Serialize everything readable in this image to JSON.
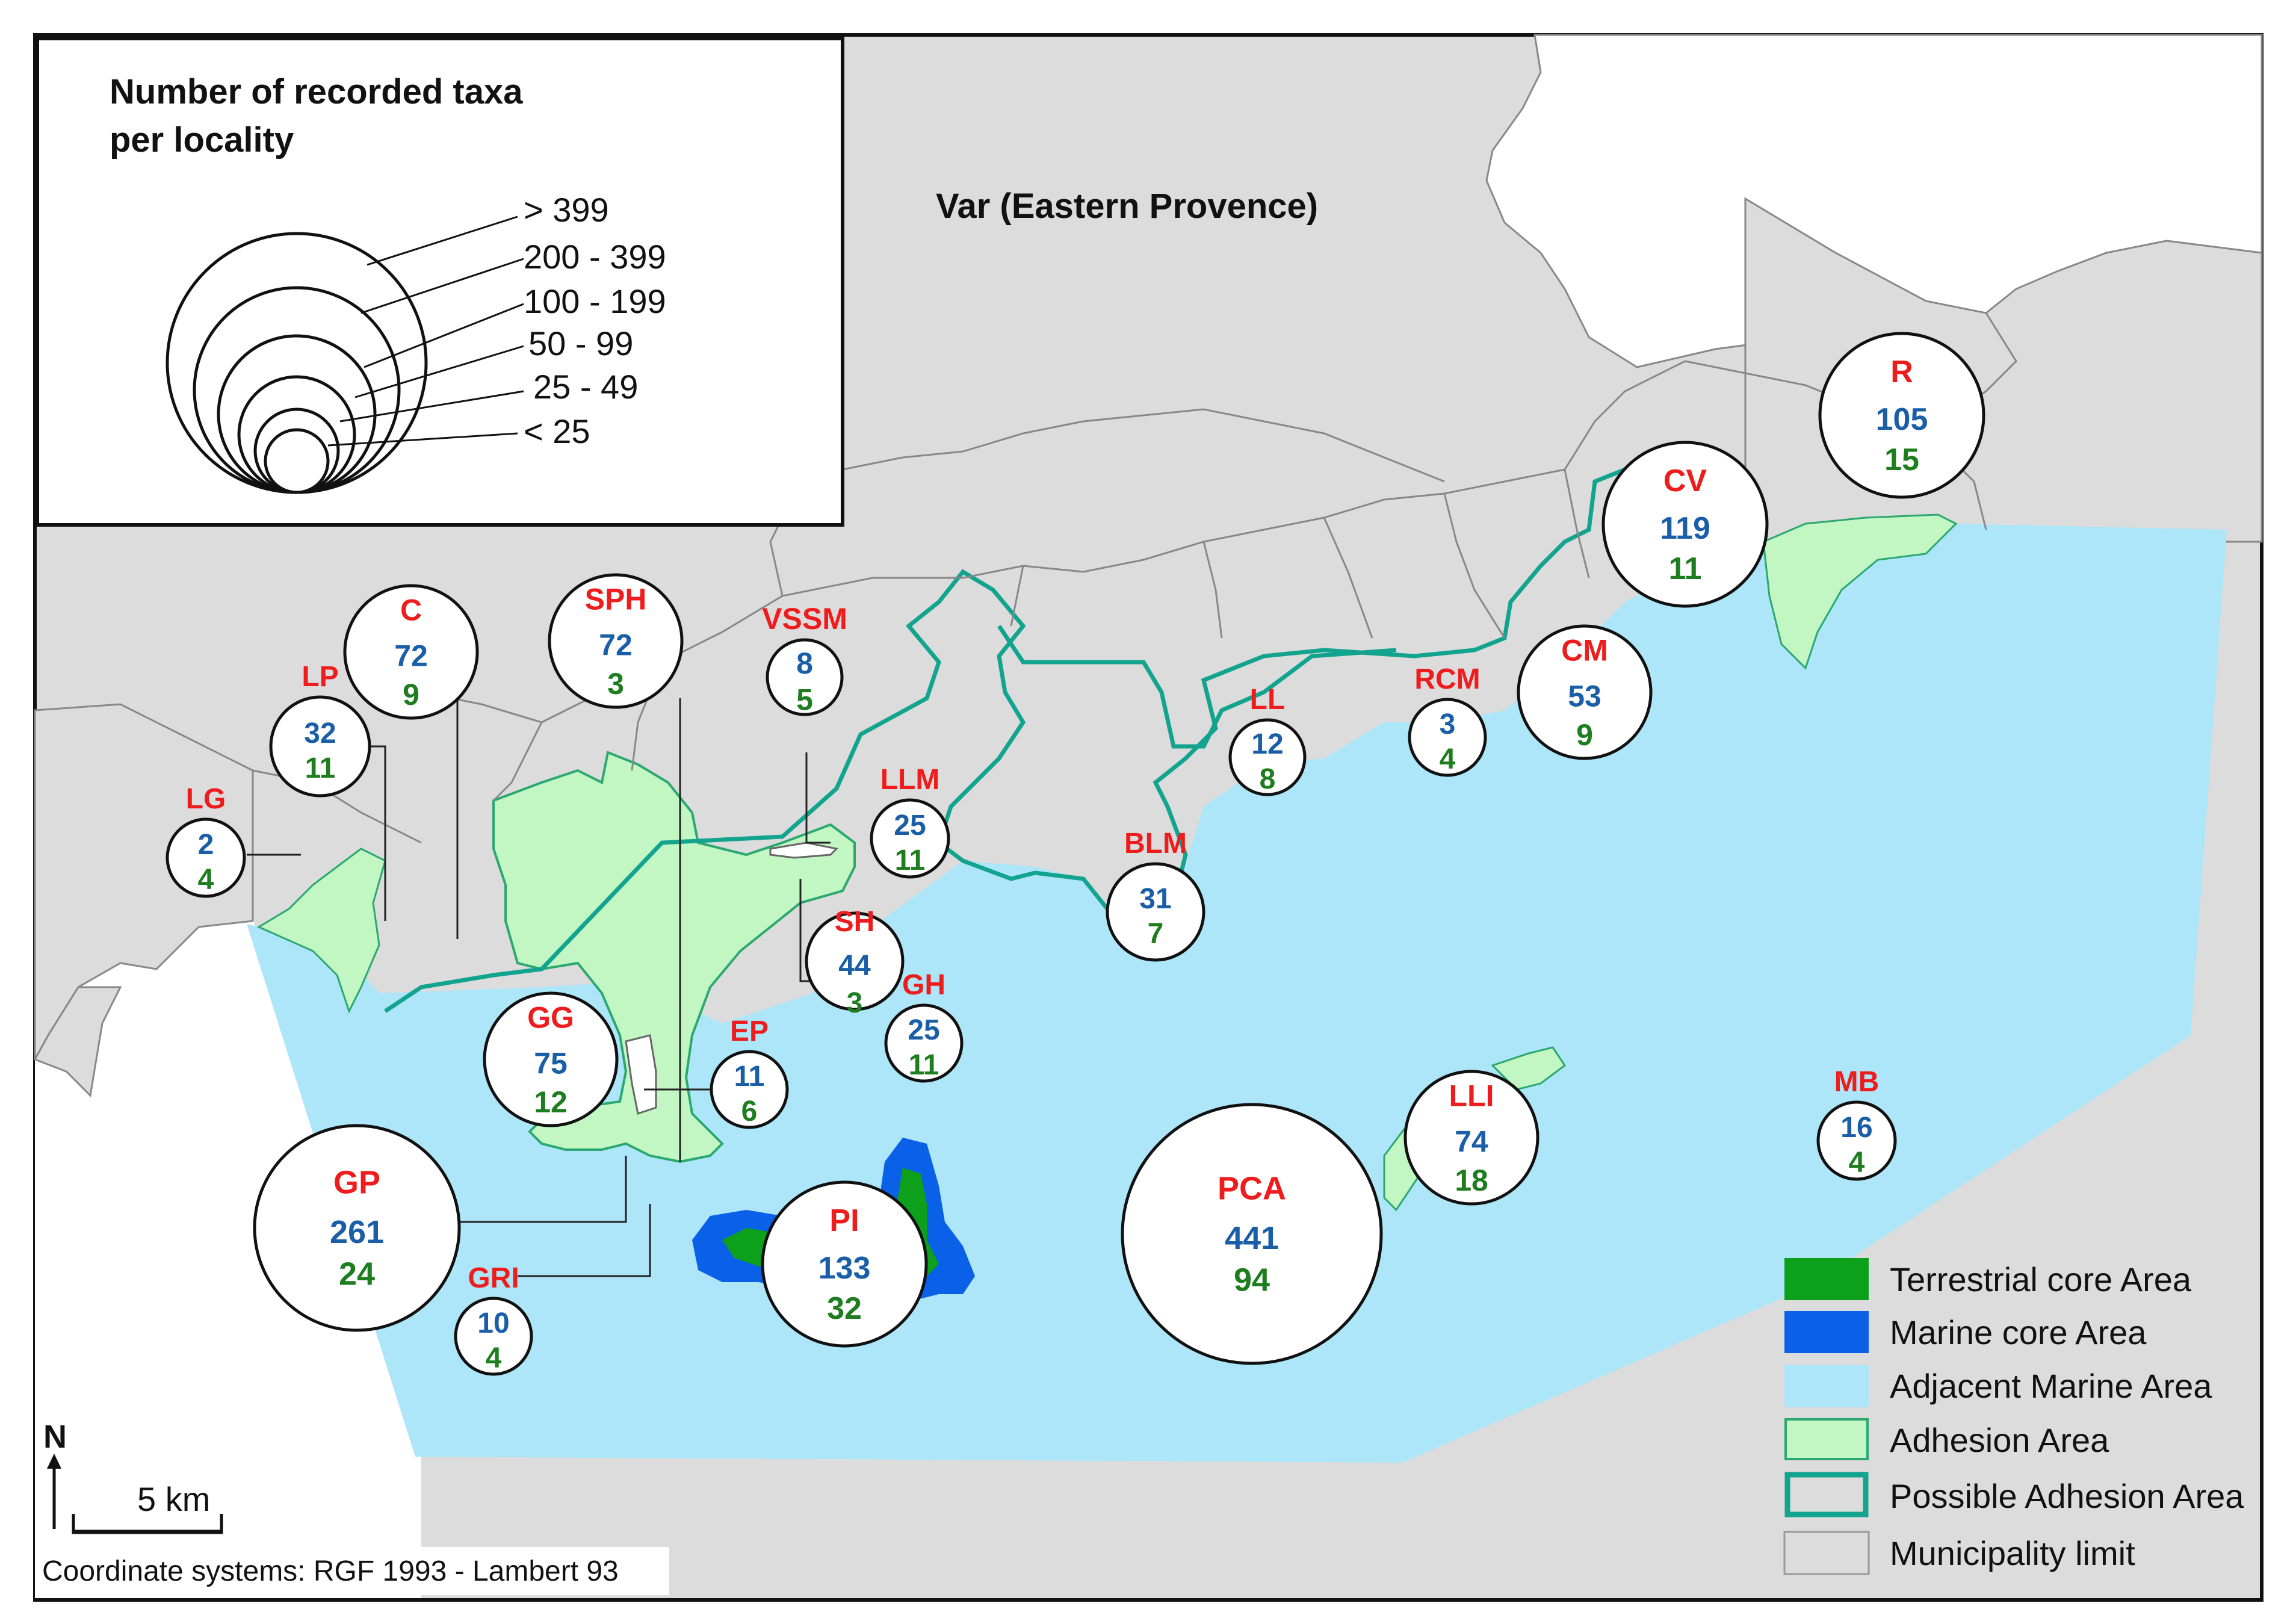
{
  "map": {
    "region_label": "Var (Eastern Provence)",
    "coordinate_note": "Coordinate systems: RGF 1993 - Lambert 93",
    "north_label": "N",
    "scale_label": "5 km"
  },
  "size_legend": {
    "title_line1": "Number of recorded taxa",
    "title_line2": "per locality",
    "classes": [
      "> 399",
      "200 - 399",
      "100 - 199",
      "50 - 99",
      "25 - 49",
      "< 25"
    ]
  },
  "area_legend": [
    {
      "label": "Terrestrial core Area",
      "color": "#0ca01b"
    },
    {
      "label": "Marine core Area",
      "color": "#0b60e8"
    },
    {
      "label": "Adjacent Marine Area",
      "color": "#ade6f8"
    },
    {
      "label": "Adhesion Area",
      "color": "#c2f7c3"
    },
    {
      "label": "Possible Adhesion Area",
      "color": "#dcdcdc",
      "border": "#13a48f"
    },
    {
      "label": "Municipality limit",
      "color": "#dcdcdc"
    }
  ],
  "colors": {
    "land": "#dcdcdc",
    "sea": "#ade6f8",
    "adhesion": "#c2f7c3",
    "possible_adhesion_border": "#13a48f",
    "marine_core": "#0b60e8",
    "terrestrial_core": "#0ca01b",
    "code_text": "#ee1c1c",
    "marine_count_text": "#1a5ea8",
    "terrestrial_count_text": "#1e7d1e"
  },
  "localities": [
    {
      "code": "C",
      "marine": "72",
      "terrestrial": "9"
    },
    {
      "code": "SPH",
      "marine": "72",
      "terrestrial": "3"
    },
    {
      "code": "VSSM",
      "marine": "8",
      "terrestrial": "5"
    },
    {
      "code": "LP",
      "marine": "32",
      "terrestrial": "11"
    },
    {
      "code": "LG",
      "marine": "2",
      "terrestrial": "4"
    },
    {
      "code": "LLM",
      "marine": "25",
      "terrestrial": "11"
    },
    {
      "code": "BLM",
      "marine": "31",
      "terrestrial": "7"
    },
    {
      "code": "LL",
      "marine": "12",
      "terrestrial": "8"
    },
    {
      "code": "RCM",
      "marine": "3",
      "terrestrial": "4"
    },
    {
      "code": "CM",
      "marine": "53",
      "terrestrial": "9"
    },
    {
      "code": "CV",
      "marine": "119",
      "terrestrial": "11"
    },
    {
      "code": "R",
      "marine": "105",
      "terrestrial": "15"
    },
    {
      "code": "SH",
      "marine": "44",
      "terrestrial": "3"
    },
    {
      "code": "GH",
      "marine": "25",
      "terrestrial": "11"
    },
    {
      "code": "GG",
      "marine": "75",
      "terrestrial": "12"
    },
    {
      "code": "EP",
      "marine": "11",
      "terrestrial": "6"
    },
    {
      "code": "GP",
      "marine": "261",
      "terrestrial": "24"
    },
    {
      "code": "GRI",
      "marine": "10",
      "terrestrial": "4"
    },
    {
      "code": "PI",
      "marine": "133",
      "terrestrial": "32"
    },
    {
      "code": "PCA",
      "marine": "441",
      "terrestrial": "94"
    },
    {
      "code": "LLI",
      "marine": "74",
      "terrestrial": "18"
    },
    {
      "code": "MB",
      "marine": "16",
      "terrestrial": "4"
    }
  ]
}
